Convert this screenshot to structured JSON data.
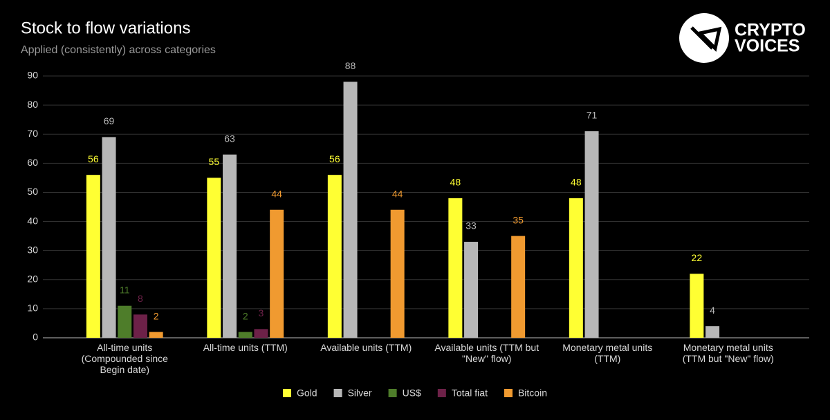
{
  "chart_data": {
    "type": "bar",
    "title": "Stock to flow variations",
    "subtitle": "Applied (consistently) across categories",
    "logo": [
      "CRYPTO",
      "VOICES"
    ],
    "categories": [
      "All-time units (Compounded since Begin date)",
      "All-time units (TTM)",
      "Available units (TTM)",
      "Available units (TTM but \"New\" flow)",
      "Monetary metal units (TTM)",
      "Monetary metal units (TTM but \"New\" flow)"
    ],
    "series": [
      {
        "name": "Gold",
        "color": "#ffff33",
        "values": [
          56,
          55,
          56,
          48,
          48,
          22
        ]
      },
      {
        "name": "Silver",
        "color": "#b7b7b7",
        "values": [
          69,
          63,
          88,
          33,
          71,
          4
        ]
      },
      {
        "name": "US$",
        "color": "#4e7d2a",
        "values": [
          11,
          2,
          null,
          null,
          null,
          null
        ]
      },
      {
        "name": "Total fiat",
        "color": "#6d2148",
        "values": [
          8,
          3,
          null,
          null,
          null,
          null
        ]
      },
      {
        "name": "Bitcoin",
        "color": "#f09a30",
        "values": [
          2,
          44,
          44,
          35,
          null,
          null
        ]
      }
    ],
    "ylim": [
      0,
      90
    ],
    "yticks": [
      0,
      10,
      20,
      30,
      40,
      50,
      60,
      70,
      80,
      90
    ],
    "grid": true,
    "legend": "bottom"
  }
}
